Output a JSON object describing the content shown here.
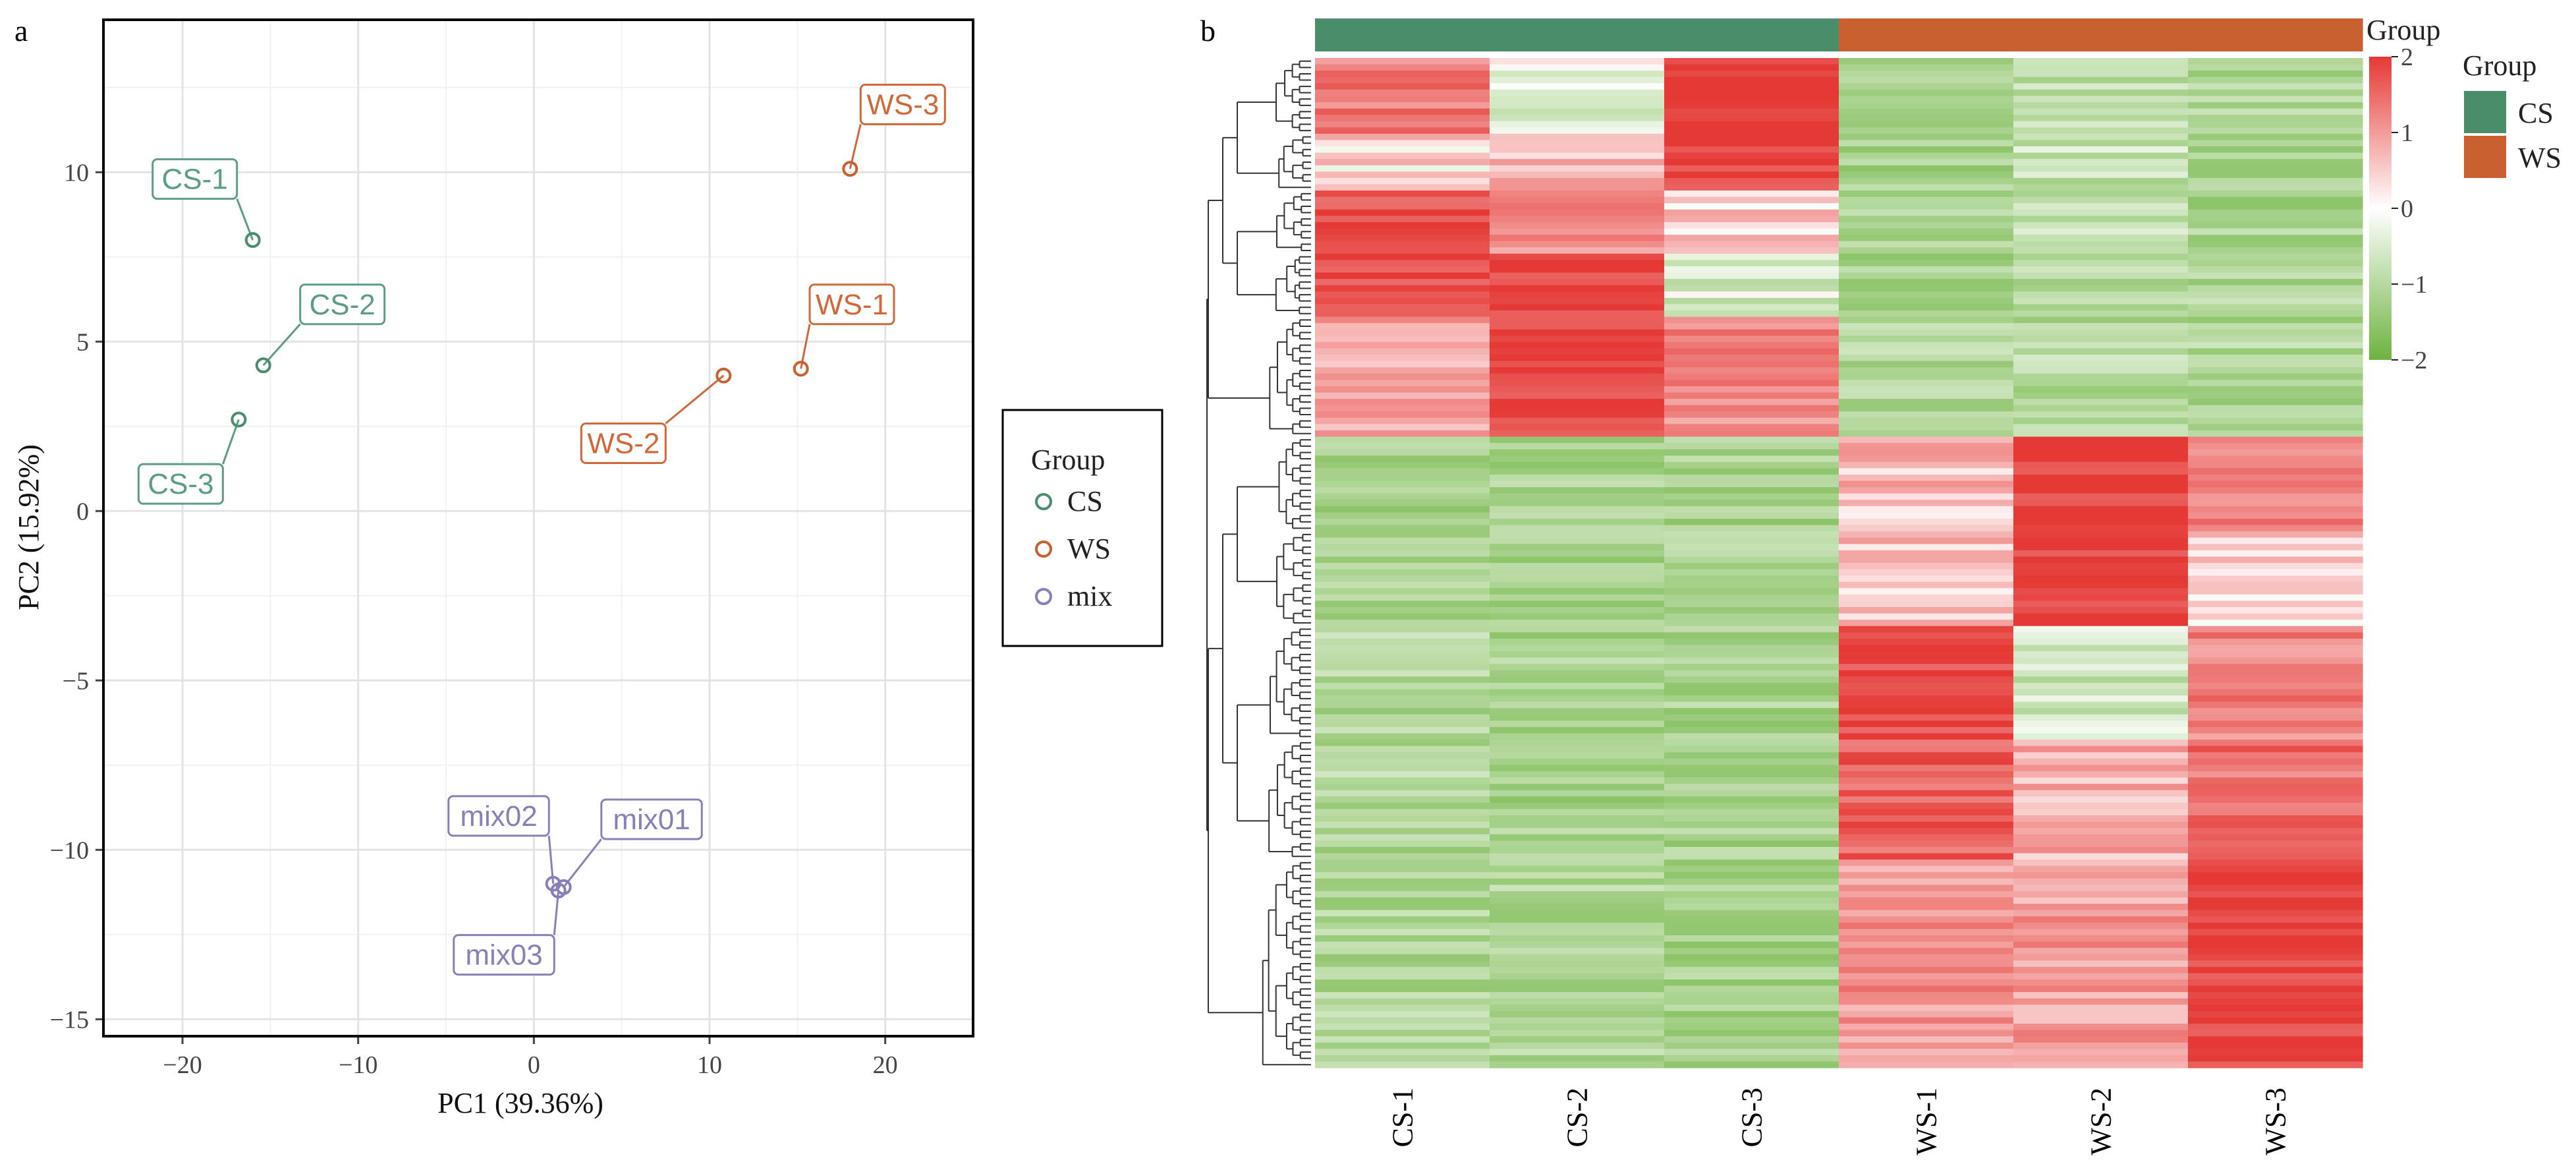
{
  "panels": {
    "a": "a",
    "b": "b"
  },
  "colors": {
    "CS": "#4a8d6a",
    "WS": "#c8612f",
    "mix": "#8b7db8",
    "CS_label": "#5b9e82",
    "WS_label": "#d2683a",
    "mix_label": "#8a80b8",
    "heat_low": "#6db33f",
    "heat_mid": "#ffffff",
    "heat_high": "#e53935"
  },
  "chart_data": [
    {
      "type": "scatter",
      "panel": "a",
      "xlabel": "PC1 (39.36%)",
      "ylabel": "PC2 (15.92%)",
      "xlim": [
        -24.5,
        25
      ],
      "ylim": [
        -15.5,
        14.5
      ],
      "xticks": [
        -20,
        -10,
        0,
        10,
        20
      ],
      "yticks": [
        -15,
        -10,
        -5,
        0,
        5,
        10
      ],
      "grid": true,
      "legend": {
        "title": "Group",
        "placement": "right",
        "entries": [
          {
            "name": "CS",
            "color_key": "CS"
          },
          {
            "name": "WS",
            "color_key": "WS"
          },
          {
            "name": "mix",
            "color_key": "mix"
          }
        ]
      },
      "points": [
        {
          "label": "CS-1",
          "group": "CS",
          "x": -16.0,
          "y": 8.0
        },
        {
          "label": "CS-2",
          "group": "CS",
          "x": -15.4,
          "y": 4.3
        },
        {
          "label": "CS-3",
          "group": "CS",
          "x": -16.8,
          "y": 2.7
        },
        {
          "label": "WS-1",
          "group": "WS",
          "x": 15.2,
          "y": 4.2
        },
        {
          "label": "WS-2",
          "group": "WS",
          "x": 10.8,
          "y": 4.0
        },
        {
          "label": "WS-3",
          "group": "WS",
          "x": 18.0,
          "y": 10.1
        },
        {
          "label": "mix01",
          "group": "mix",
          "x": 1.7,
          "y": -11.1
        },
        {
          "label": "mix02",
          "group": "mix",
          "x": 1.1,
          "y": -11.0
        },
        {
          "label": "mix03",
          "group": "mix",
          "x": 1.4,
          "y": -11.2
        }
      ],
      "labels": [
        {
          "text": "CS-1",
          "point": 0,
          "lx": -19.3,
          "ly": 9.8
        },
        {
          "text": "CS-2",
          "point": 1,
          "lx": -10.9,
          "ly": 6.1
        },
        {
          "text": "CS-3",
          "point": 2,
          "lx": -20.1,
          "ly": 0.8
        },
        {
          "text": "WS-1",
          "point": 3,
          "lx": 18.1,
          "ly": 6.1
        },
        {
          "text": "WS-2",
          "point": 4,
          "lx": 5.1,
          "ly": 2.0
        },
        {
          "text": "WS-3",
          "point": 5,
          "lx": 21.0,
          "ly": 12.0
        },
        {
          "text": "mix01",
          "point": 6,
          "lx": 6.7,
          "ly": -9.1
        },
        {
          "text": "mix02",
          "point": 7,
          "lx": -2.0,
          "ly": -9.0
        },
        {
          "text": "mix03",
          "point": 8,
          "lx": -1.7,
          "ly": -13.1
        }
      ]
    },
    {
      "type": "heatmap",
      "panel": "b",
      "columns": [
        "CS-1",
        "CS-2",
        "CS-3",
        "WS-1",
        "WS-2",
        "WS-3"
      ],
      "column_groups": [
        "CS",
        "CS",
        "CS",
        "WS",
        "WS",
        "WS"
      ],
      "row_count": 160,
      "color_scale": {
        "title": "Group",
        "min": -2,
        "max": 2,
        "ticks": [
          2,
          1,
          0,
          -1,
          -2
        ]
      },
      "group_legend": {
        "title": "Group",
        "entries": [
          "CS",
          "WS"
        ]
      },
      "row_blocks": [
        {
          "rows": 12,
          "means": [
            1.2,
            -0.2,
            1.9,
            -1.0,
            -0.7,
            -0.9
          ]
        },
        {
          "rows": 9,
          "means": [
            0.3,
            0.5,
            1.9,
            -1.0,
            -0.6,
            -1.1
          ]
        },
        {
          "rows": 10,
          "means": [
            1.7,
            0.9,
            0.3,
            -1.0,
            -0.7,
            -1.0
          ]
        },
        {
          "rows": 10,
          "means": [
            1.8,
            1.9,
            -0.4,
            -1.0,
            -0.8,
            -0.9
          ]
        },
        {
          "rows": 19,
          "means": [
            0.6,
            1.9,
            1.0,
            -0.9,
            -0.8,
            -0.9
          ]
        },
        {
          "rows": 15,
          "means": [
            -1.0,
            -1.0,
            -1.0,
            0.5,
            1.9,
            1.2
          ]
        },
        {
          "rows": 15,
          "means": [
            -1.0,
            -1.0,
            -0.9,
            0.4,
            1.9,
            0.3
          ]
        },
        {
          "rows": 18,
          "means": [
            -0.9,
            -1.0,
            -1.0,
            1.8,
            -0.5,
            1.1
          ]
        },
        {
          "rows": 19,
          "means": [
            -0.9,
            -1.0,
            -1.0,
            1.5,
            0.6,
            1.3
          ]
        },
        {
          "rows": 33,
          "means": [
            -0.9,
            -0.9,
            -1.0,
            0.9,
            0.8,
            1.9
          ]
        }
      ]
    }
  ]
}
